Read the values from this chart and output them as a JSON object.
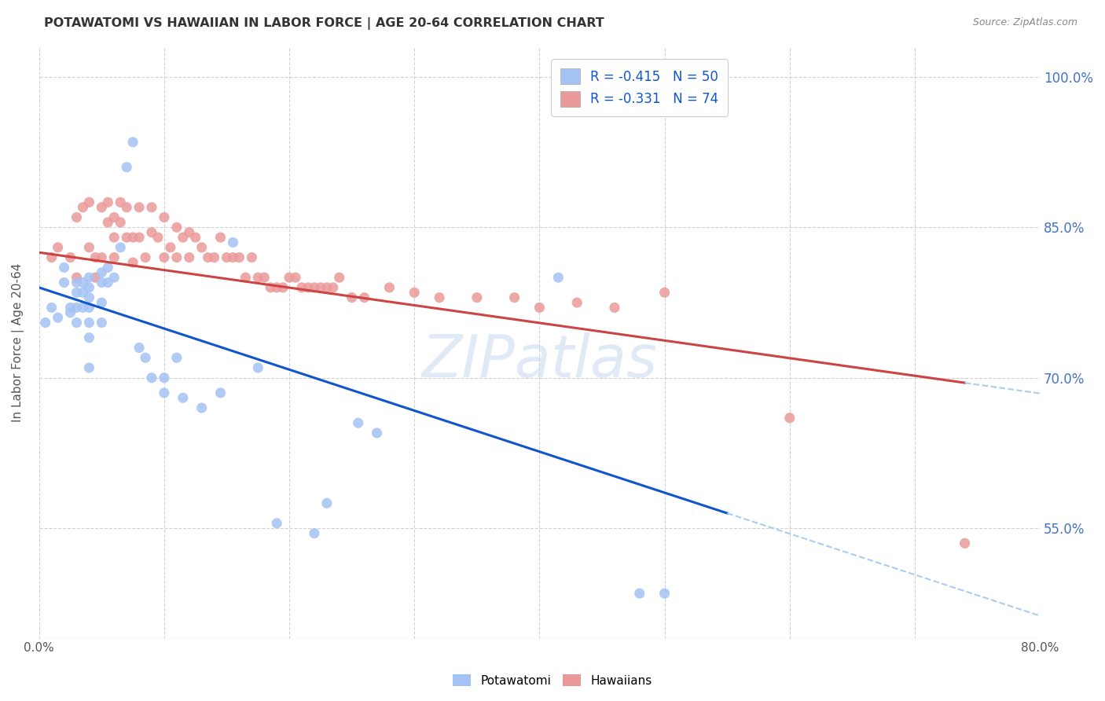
{
  "title": "POTAWATOMI VS HAWAIIAN IN LABOR FORCE | AGE 20-64 CORRELATION CHART",
  "source": "Source: ZipAtlas.com",
  "ylabel": "In Labor Force | Age 20-64",
  "xlim": [
    0.0,
    0.8
  ],
  "ylim": [
    0.44,
    1.03
  ],
  "xticks": [
    0.0,
    0.1,
    0.2,
    0.3,
    0.4,
    0.5,
    0.6,
    0.7,
    0.8
  ],
  "xticklabels": [
    "0.0%",
    "",
    "",
    "",
    "",
    "",
    "",
    "",
    "80.0%"
  ],
  "yticks": [
    0.55,
    0.7,
    0.85,
    1.0
  ],
  "yticklabels": [
    "55.0%",
    "70.0%",
    "85.0%",
    "100.0%"
  ],
  "legend_R_blue": "R = -0.415",
  "legend_N_blue": "N = 50",
  "legend_R_pink": "R = -0.331",
  "legend_N_pink": "N = 74",
  "blue_color": "#a4c2f4",
  "pink_color": "#ea9999",
  "blue_line_color": "#1155cc",
  "pink_line_color": "#cc4444",
  "dashed_line_color": "#aaccee",
  "watermark": "ZIPatlas",
  "blue_line_x0": 0.0,
  "blue_line_y0": 0.79,
  "blue_line_x1": 0.55,
  "blue_line_y1": 0.565,
  "pink_line_x0": 0.0,
  "pink_line_y0": 0.825,
  "pink_line_x1": 0.74,
  "pink_line_y1": 0.695,
  "potawatomi_x": [
    0.005,
    0.01,
    0.015,
    0.02,
    0.02,
    0.025,
    0.025,
    0.03,
    0.03,
    0.03,
    0.03,
    0.035,
    0.035,
    0.035,
    0.04,
    0.04,
    0.04,
    0.04,
    0.04,
    0.04,
    0.04,
    0.05,
    0.05,
    0.05,
    0.05,
    0.055,
    0.055,
    0.06,
    0.065,
    0.07,
    0.075,
    0.08,
    0.085,
    0.09,
    0.1,
    0.1,
    0.11,
    0.115,
    0.13,
    0.145,
    0.155,
    0.175,
    0.19,
    0.22,
    0.23,
    0.255,
    0.27,
    0.415,
    0.48,
    0.5
  ],
  "potawatomi_y": [
    0.755,
    0.77,
    0.76,
    0.81,
    0.795,
    0.77,
    0.765,
    0.795,
    0.785,
    0.77,
    0.755,
    0.795,
    0.785,
    0.77,
    0.8,
    0.79,
    0.78,
    0.77,
    0.755,
    0.74,
    0.71,
    0.805,
    0.795,
    0.775,
    0.755,
    0.81,
    0.795,
    0.8,
    0.83,
    0.91,
    0.935,
    0.73,
    0.72,
    0.7,
    0.7,
    0.685,
    0.72,
    0.68,
    0.67,
    0.685,
    0.835,
    0.71,
    0.555,
    0.545,
    0.575,
    0.655,
    0.645,
    0.8,
    0.485,
    0.485
  ],
  "hawaiian_x": [
    0.01,
    0.015,
    0.025,
    0.03,
    0.03,
    0.035,
    0.04,
    0.04,
    0.045,
    0.045,
    0.05,
    0.05,
    0.055,
    0.055,
    0.06,
    0.06,
    0.06,
    0.065,
    0.065,
    0.07,
    0.07,
    0.075,
    0.075,
    0.08,
    0.08,
    0.085,
    0.09,
    0.09,
    0.095,
    0.1,
    0.1,
    0.105,
    0.11,
    0.11,
    0.115,
    0.12,
    0.12,
    0.125,
    0.13,
    0.135,
    0.14,
    0.145,
    0.15,
    0.155,
    0.16,
    0.165,
    0.17,
    0.175,
    0.18,
    0.185,
    0.19,
    0.195,
    0.2,
    0.205,
    0.21,
    0.215,
    0.22,
    0.225,
    0.23,
    0.235,
    0.24,
    0.25,
    0.26,
    0.28,
    0.3,
    0.32,
    0.35,
    0.38,
    0.4,
    0.43,
    0.46,
    0.5,
    0.6,
    0.74
  ],
  "hawaiian_y": [
    0.82,
    0.83,
    0.82,
    0.86,
    0.8,
    0.87,
    0.875,
    0.83,
    0.82,
    0.8,
    0.87,
    0.82,
    0.875,
    0.855,
    0.86,
    0.84,
    0.82,
    0.875,
    0.855,
    0.87,
    0.84,
    0.84,
    0.815,
    0.87,
    0.84,
    0.82,
    0.87,
    0.845,
    0.84,
    0.86,
    0.82,
    0.83,
    0.85,
    0.82,
    0.84,
    0.845,
    0.82,
    0.84,
    0.83,
    0.82,
    0.82,
    0.84,
    0.82,
    0.82,
    0.82,
    0.8,
    0.82,
    0.8,
    0.8,
    0.79,
    0.79,
    0.79,
    0.8,
    0.8,
    0.79,
    0.79,
    0.79,
    0.79,
    0.79,
    0.79,
    0.8,
    0.78,
    0.78,
    0.79,
    0.785,
    0.78,
    0.78,
    0.78,
    0.77,
    0.775,
    0.77,
    0.785,
    0.66,
    0.535
  ]
}
